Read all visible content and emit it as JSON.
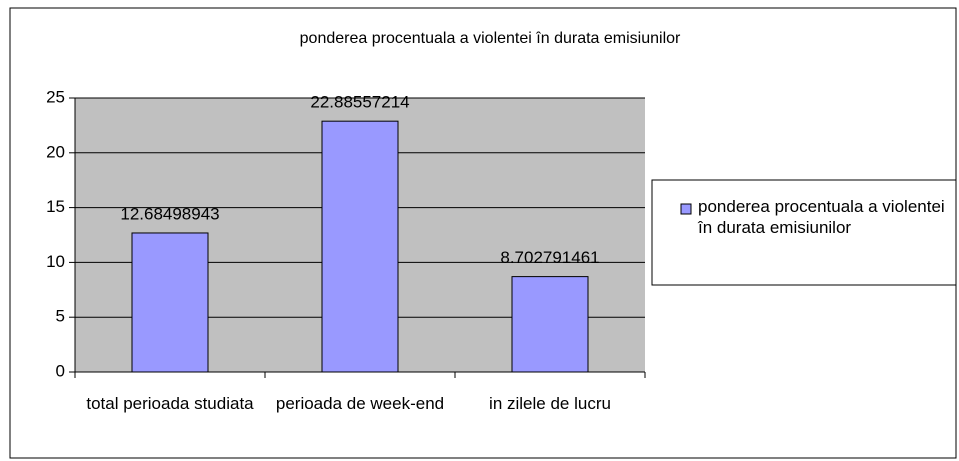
{
  "chart_data": {
    "type": "bar",
    "title": "ponderea procentuala a violentei în durata emisiunilor",
    "categories": [
      "total perioada studiata",
      "perioada de week-end",
      "in zilele de lucru"
    ],
    "series": [
      {
        "name": "ponderea procentuala a violentei în durata emisiunilor",
        "color": "#9999ff",
        "values": [
          12.68498943,
          22.88557214,
          8.702791461
        ]
      }
    ],
    "ylim": [
      0,
      25
    ],
    "yticks": [
      0,
      5,
      10,
      15,
      20,
      25
    ],
    "grid": true,
    "legend": "right",
    "plot_background": "#c0c0c0"
  }
}
